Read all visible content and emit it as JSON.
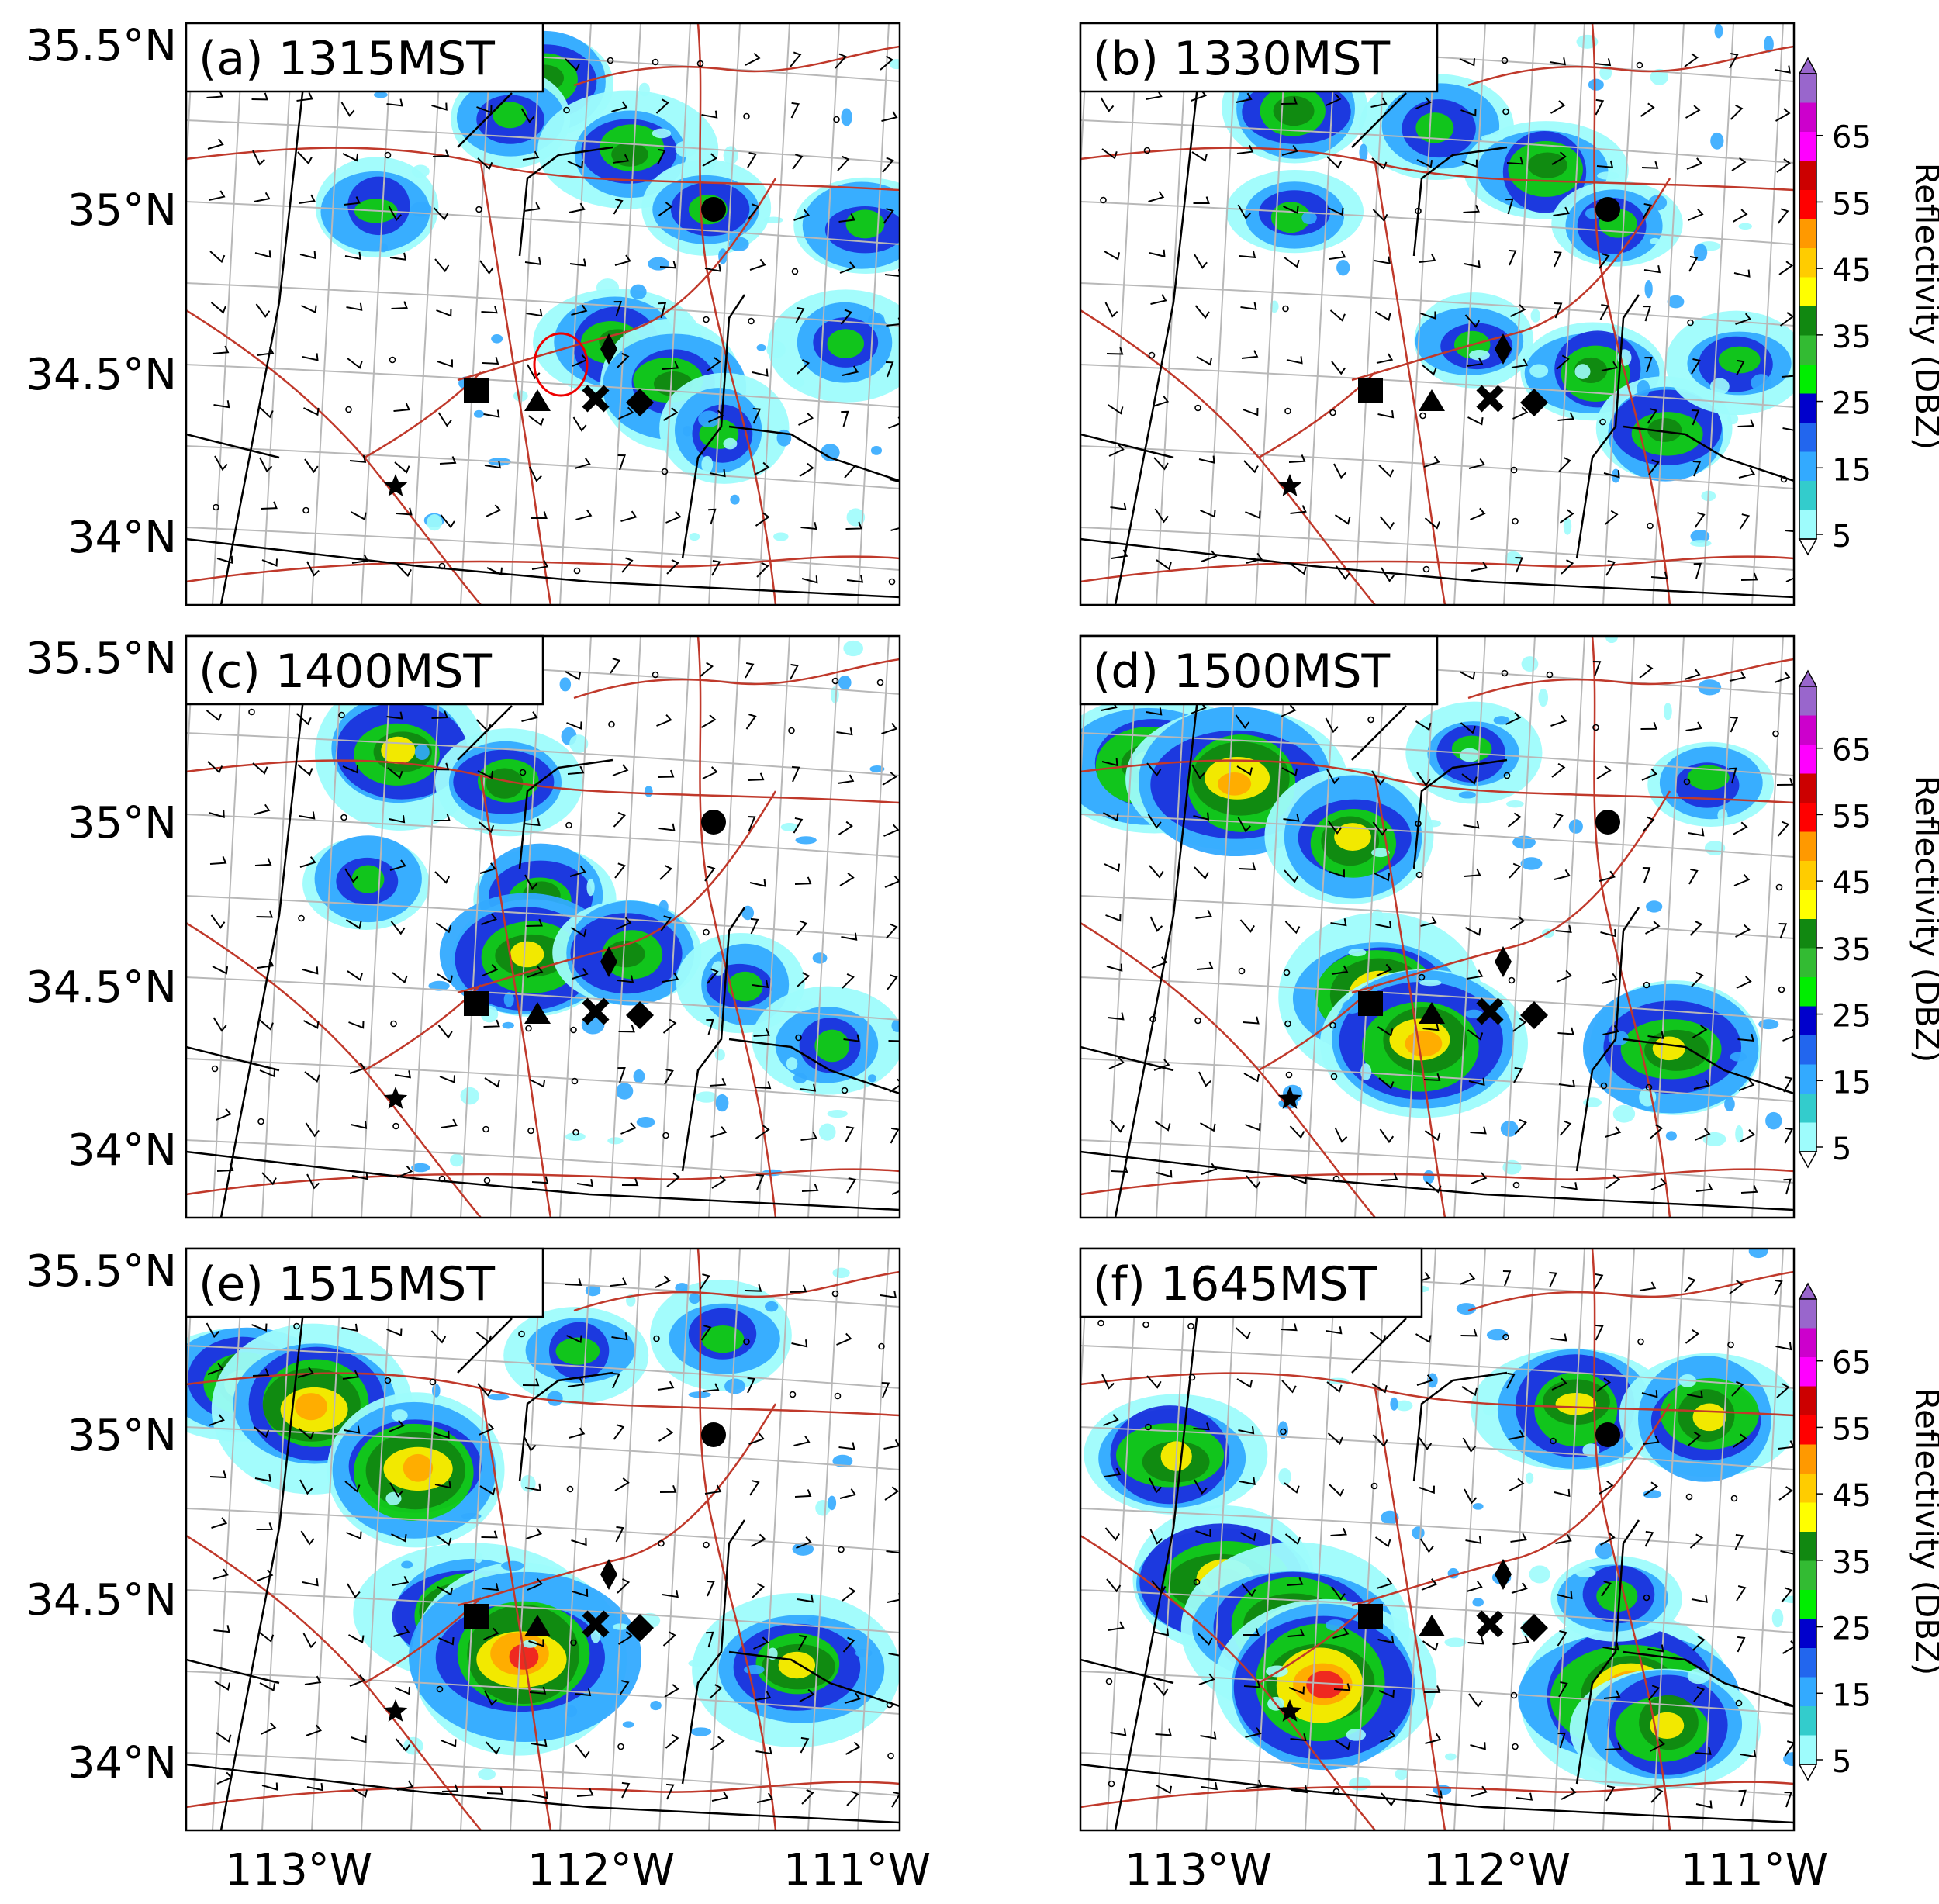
{
  "panels": [
    {
      "label": "(a) 1315MST",
      "cells": [
        [
          0.5,
          0.1,
          2
        ],
        [
          0.45,
          0.16,
          1
        ],
        [
          0.62,
          0.22,
          2
        ],
        [
          0.73,
          0.32,
          1
        ],
        [
          0.6,
          0.55,
          2
        ],
        [
          0.68,
          0.62,
          2
        ],
        [
          0.75,
          0.7,
          1
        ],
        [
          0.27,
          0.32,
          1
        ],
        [
          0.92,
          0.55,
          1
        ],
        [
          0.95,
          0.35,
          1
        ]
      ]
    },
    {
      "label": "(b) 1330MST",
      "cells": [
        [
          0.3,
          0.15,
          2
        ],
        [
          0.5,
          0.18,
          1
        ],
        [
          0.65,
          0.25,
          2
        ],
        [
          0.75,
          0.35,
          1
        ],
        [
          0.55,
          0.55,
          1
        ],
        [
          0.72,
          0.6,
          2
        ],
        [
          0.82,
          0.7,
          2
        ],
        [
          0.92,
          0.58,
          1
        ],
        [
          0.3,
          0.33,
          1
        ]
      ]
    },
    {
      "label": "(c) 1400MST",
      "cells": [
        [
          0.3,
          0.2,
          3
        ],
        [
          0.45,
          0.25,
          2
        ],
        [
          0.5,
          0.45,
          2
        ],
        [
          0.48,
          0.55,
          3
        ],
        [
          0.62,
          0.55,
          2
        ],
        [
          0.78,
          0.6,
          1
        ],
        [
          0.9,
          0.7,
          1
        ],
        [
          0.25,
          0.42,
          1
        ]
      ]
    },
    {
      "label": "(d) 1500MST",
      "cells": [
        [
          0.1,
          0.22,
          3
        ],
        [
          0.22,
          0.25,
          4
        ],
        [
          0.38,
          0.35,
          3
        ],
        [
          0.42,
          0.62,
          4
        ],
        [
          0.48,
          0.7,
          4
        ],
        [
          0.83,
          0.71,
          3
        ],
        [
          0.55,
          0.2,
          1
        ],
        [
          0.88,
          0.25,
          1
        ]
      ]
    },
    {
      "label": "(e) 1515MST",
      "cells": [
        [
          0.08,
          0.23,
          3
        ],
        [
          0.18,
          0.27,
          4
        ],
        [
          0.32,
          0.38,
          4
        ],
        [
          0.4,
          0.63,
          4
        ],
        [
          0.47,
          0.7,
          5
        ],
        [
          0.86,
          0.72,
          3
        ],
        [
          0.55,
          0.18,
          1
        ],
        [
          0.75,
          0.15,
          1
        ]
      ]
    },
    {
      "label": "(f) 1645MST",
      "cells": [
        [
          0.13,
          0.36,
          3
        ],
        [
          0.2,
          0.57,
          4
        ],
        [
          0.3,
          0.65,
          4
        ],
        [
          0.34,
          0.75,
          5
        ],
        [
          0.69,
          0.27,
          3
        ],
        [
          0.88,
          0.29,
          3
        ],
        [
          0.77,
          0.77,
          5
        ],
        [
          0.82,
          0.82,
          3
        ],
        [
          0.75,
          0.6,
          1
        ]
      ]
    }
  ],
  "lat_labels": [
    "35.5°N",
    "35°N",
    "34.5°N",
    "34°N"
  ],
  "lon_labels": [
    "113°W",
    "112°W",
    "111°W"
  ],
  "colorbar": {
    "title": "Reflectivity (DBZ)",
    "ticks": [
      "5",
      "15",
      "25",
      "35",
      "45",
      "55",
      "65"
    ],
    "colors": [
      "#9efcfc",
      "#33cccc",
      "#33aaff",
      "#2266ee",
      "#0000cc",
      "#00ee00",
      "#33bb33",
      "#118811",
      "#ffff00",
      "#ffcc00",
      "#ff9900",
      "#ff0000",
      "#cc0000",
      "#ff00ff",
      "#cc00cc",
      "#9966cc"
    ]
  },
  "markers": [
    "star",
    "square",
    "triangle",
    "thin-diamond",
    "x",
    "diamond",
    "circle"
  ]
}
